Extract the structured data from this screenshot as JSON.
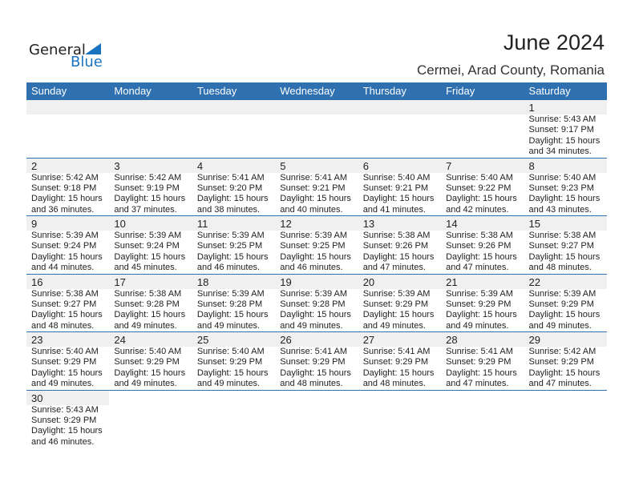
{
  "logo": {
    "general": "General",
    "blue": "Blue"
  },
  "title": "June 2024",
  "subtitle": "Cermei, Arad County, Romania",
  "colors": {
    "header": "#2e70b0",
    "band": "#f0f0f0"
  },
  "weekdays": [
    "Sunday",
    "Monday",
    "Tuesday",
    "Wednesday",
    "Thursday",
    "Friday",
    "Saturday"
  ],
  "weeks": [
    [
      null,
      null,
      null,
      null,
      null,
      null,
      {
        "day": "1",
        "sunrise": "Sunrise: 5:43 AM",
        "sunset": "Sunset: 9:17 PM",
        "daylight": "Daylight: 15 hours",
        "minutes": "and 34 minutes."
      }
    ],
    [
      {
        "day": "2",
        "sunrise": "Sunrise: 5:42 AM",
        "sunset": "Sunset: 9:18 PM",
        "daylight": "Daylight: 15 hours",
        "minutes": "and 36 minutes."
      },
      {
        "day": "3",
        "sunrise": "Sunrise: 5:42 AM",
        "sunset": "Sunset: 9:19 PM",
        "daylight": "Daylight: 15 hours",
        "minutes": "and 37 minutes."
      },
      {
        "day": "4",
        "sunrise": "Sunrise: 5:41 AM",
        "sunset": "Sunset: 9:20 PM",
        "daylight": "Daylight: 15 hours",
        "minutes": "and 38 minutes."
      },
      {
        "day": "5",
        "sunrise": "Sunrise: 5:41 AM",
        "sunset": "Sunset: 9:21 PM",
        "daylight": "Daylight: 15 hours",
        "minutes": "and 40 minutes."
      },
      {
        "day": "6",
        "sunrise": "Sunrise: 5:40 AM",
        "sunset": "Sunset: 9:21 PM",
        "daylight": "Daylight: 15 hours",
        "minutes": "and 41 minutes."
      },
      {
        "day": "7",
        "sunrise": "Sunrise: 5:40 AM",
        "sunset": "Sunset: 9:22 PM",
        "daylight": "Daylight: 15 hours",
        "minutes": "and 42 minutes."
      },
      {
        "day": "8",
        "sunrise": "Sunrise: 5:40 AM",
        "sunset": "Sunset: 9:23 PM",
        "daylight": "Daylight: 15 hours",
        "minutes": "and 43 minutes."
      }
    ],
    [
      {
        "day": "9",
        "sunrise": "Sunrise: 5:39 AM",
        "sunset": "Sunset: 9:24 PM",
        "daylight": "Daylight: 15 hours",
        "minutes": "and 44 minutes."
      },
      {
        "day": "10",
        "sunrise": "Sunrise: 5:39 AM",
        "sunset": "Sunset: 9:24 PM",
        "daylight": "Daylight: 15 hours",
        "minutes": "and 45 minutes."
      },
      {
        "day": "11",
        "sunrise": "Sunrise: 5:39 AM",
        "sunset": "Sunset: 9:25 PM",
        "daylight": "Daylight: 15 hours",
        "minutes": "and 46 minutes."
      },
      {
        "day": "12",
        "sunrise": "Sunrise: 5:39 AM",
        "sunset": "Sunset: 9:25 PM",
        "daylight": "Daylight: 15 hours",
        "minutes": "and 46 minutes."
      },
      {
        "day": "13",
        "sunrise": "Sunrise: 5:38 AM",
        "sunset": "Sunset: 9:26 PM",
        "daylight": "Daylight: 15 hours",
        "minutes": "and 47 minutes."
      },
      {
        "day": "14",
        "sunrise": "Sunrise: 5:38 AM",
        "sunset": "Sunset: 9:26 PM",
        "daylight": "Daylight: 15 hours",
        "minutes": "and 47 minutes."
      },
      {
        "day": "15",
        "sunrise": "Sunrise: 5:38 AM",
        "sunset": "Sunset: 9:27 PM",
        "daylight": "Daylight: 15 hours",
        "minutes": "and 48 minutes."
      }
    ],
    [
      {
        "day": "16",
        "sunrise": "Sunrise: 5:38 AM",
        "sunset": "Sunset: 9:27 PM",
        "daylight": "Daylight: 15 hours",
        "minutes": "and 48 minutes."
      },
      {
        "day": "17",
        "sunrise": "Sunrise: 5:38 AM",
        "sunset": "Sunset: 9:28 PM",
        "daylight": "Daylight: 15 hours",
        "minutes": "and 49 minutes."
      },
      {
        "day": "18",
        "sunrise": "Sunrise: 5:39 AM",
        "sunset": "Sunset: 9:28 PM",
        "daylight": "Daylight: 15 hours",
        "minutes": "and 49 minutes."
      },
      {
        "day": "19",
        "sunrise": "Sunrise: 5:39 AM",
        "sunset": "Sunset: 9:28 PM",
        "daylight": "Daylight: 15 hours",
        "minutes": "and 49 minutes."
      },
      {
        "day": "20",
        "sunrise": "Sunrise: 5:39 AM",
        "sunset": "Sunset: 9:29 PM",
        "daylight": "Daylight: 15 hours",
        "minutes": "and 49 minutes."
      },
      {
        "day": "21",
        "sunrise": "Sunrise: 5:39 AM",
        "sunset": "Sunset: 9:29 PM",
        "daylight": "Daylight: 15 hours",
        "minutes": "and 49 minutes."
      },
      {
        "day": "22",
        "sunrise": "Sunrise: 5:39 AM",
        "sunset": "Sunset: 9:29 PM",
        "daylight": "Daylight: 15 hours",
        "minutes": "and 49 minutes."
      }
    ],
    [
      {
        "day": "23",
        "sunrise": "Sunrise: 5:40 AM",
        "sunset": "Sunset: 9:29 PM",
        "daylight": "Daylight: 15 hours",
        "minutes": "and 49 minutes."
      },
      {
        "day": "24",
        "sunrise": "Sunrise: 5:40 AM",
        "sunset": "Sunset: 9:29 PM",
        "daylight": "Daylight: 15 hours",
        "minutes": "and 49 minutes."
      },
      {
        "day": "25",
        "sunrise": "Sunrise: 5:40 AM",
        "sunset": "Sunset: 9:29 PM",
        "daylight": "Daylight: 15 hours",
        "minutes": "and 49 minutes."
      },
      {
        "day": "26",
        "sunrise": "Sunrise: 5:41 AM",
        "sunset": "Sunset: 9:29 PM",
        "daylight": "Daylight: 15 hours",
        "minutes": "and 48 minutes."
      },
      {
        "day": "27",
        "sunrise": "Sunrise: 5:41 AM",
        "sunset": "Sunset: 9:29 PM",
        "daylight": "Daylight: 15 hours",
        "minutes": "and 48 minutes."
      },
      {
        "day": "28",
        "sunrise": "Sunrise: 5:41 AM",
        "sunset": "Sunset: 9:29 PM",
        "daylight": "Daylight: 15 hours",
        "minutes": "and 47 minutes."
      },
      {
        "day": "29",
        "sunrise": "Sunrise: 5:42 AM",
        "sunset": "Sunset: 9:29 PM",
        "daylight": "Daylight: 15 hours",
        "minutes": "and 47 minutes."
      }
    ],
    [
      {
        "day": "30",
        "sunrise": "Sunrise: 5:43 AM",
        "sunset": "Sunset: 9:29 PM",
        "daylight": "Daylight: 15 hours",
        "minutes": "and 46 minutes."
      },
      null,
      null,
      null,
      null,
      null,
      null
    ]
  ]
}
